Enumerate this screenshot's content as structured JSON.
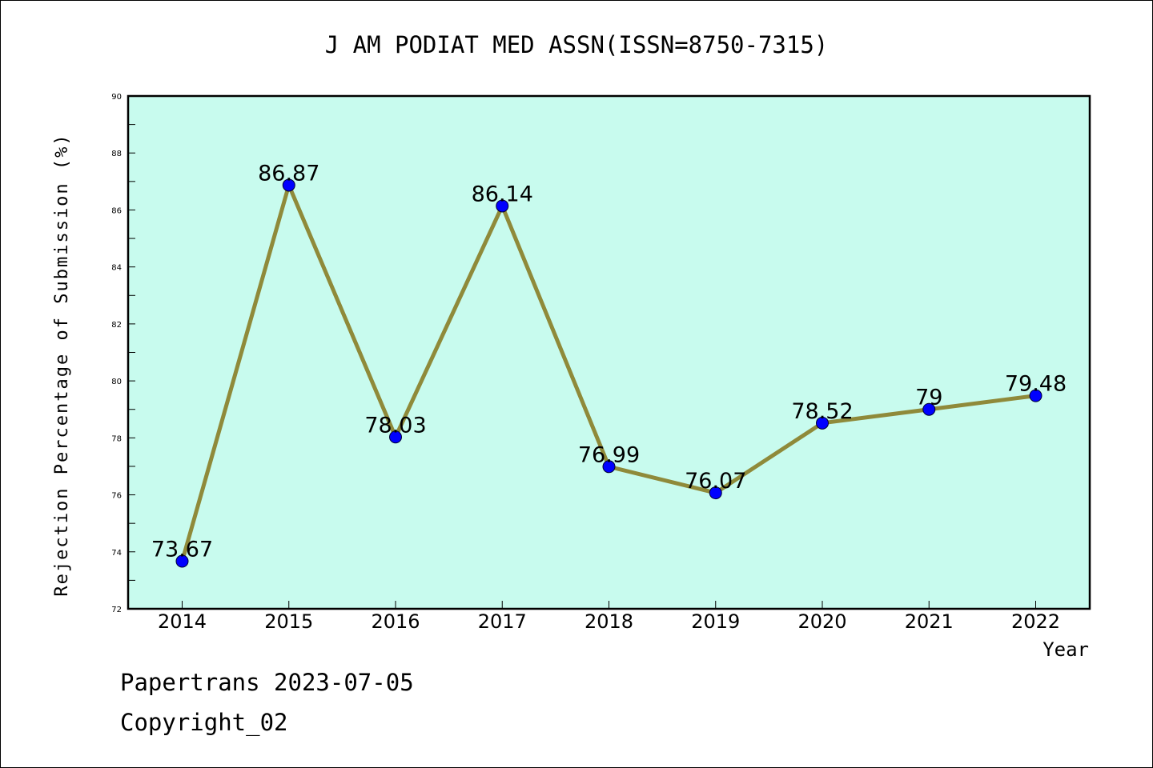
{
  "chart_data": {
    "type": "line",
    "title": "J AM PODIAT MED ASSN(ISSN=8750-7315)",
    "xlabel": "Year",
    "ylabel": "Rejection Percentage of Submission (%)",
    "categories": [
      "2014",
      "2015",
      "2016",
      "2017",
      "2018",
      "2019",
      "2020",
      "2021",
      "2022"
    ],
    "values": [
      73.67,
      86.87,
      78.03,
      86.14,
      76.99,
      76.07,
      78.52,
      79,
      79.48
    ],
    "data_labels": [
      "73.67",
      "86.87",
      "78.03",
      "86.14",
      "76.99",
      "76.07",
      "78.52",
      "79",
      "79.48"
    ],
    "ylim": [
      72,
      90
    ],
    "yticks": [
      "72",
      "74",
      "76",
      "78",
      "80",
      "82",
      "84",
      "86",
      "88",
      "90"
    ],
    "grid": false,
    "colors": {
      "plot_background": "#c8fbee",
      "line": "#8f8a3a",
      "marker": "#0000ff"
    }
  },
  "footer": {
    "date_line": "Papertrans 2023-07-05",
    "copyright_line": "Copyright_02"
  }
}
